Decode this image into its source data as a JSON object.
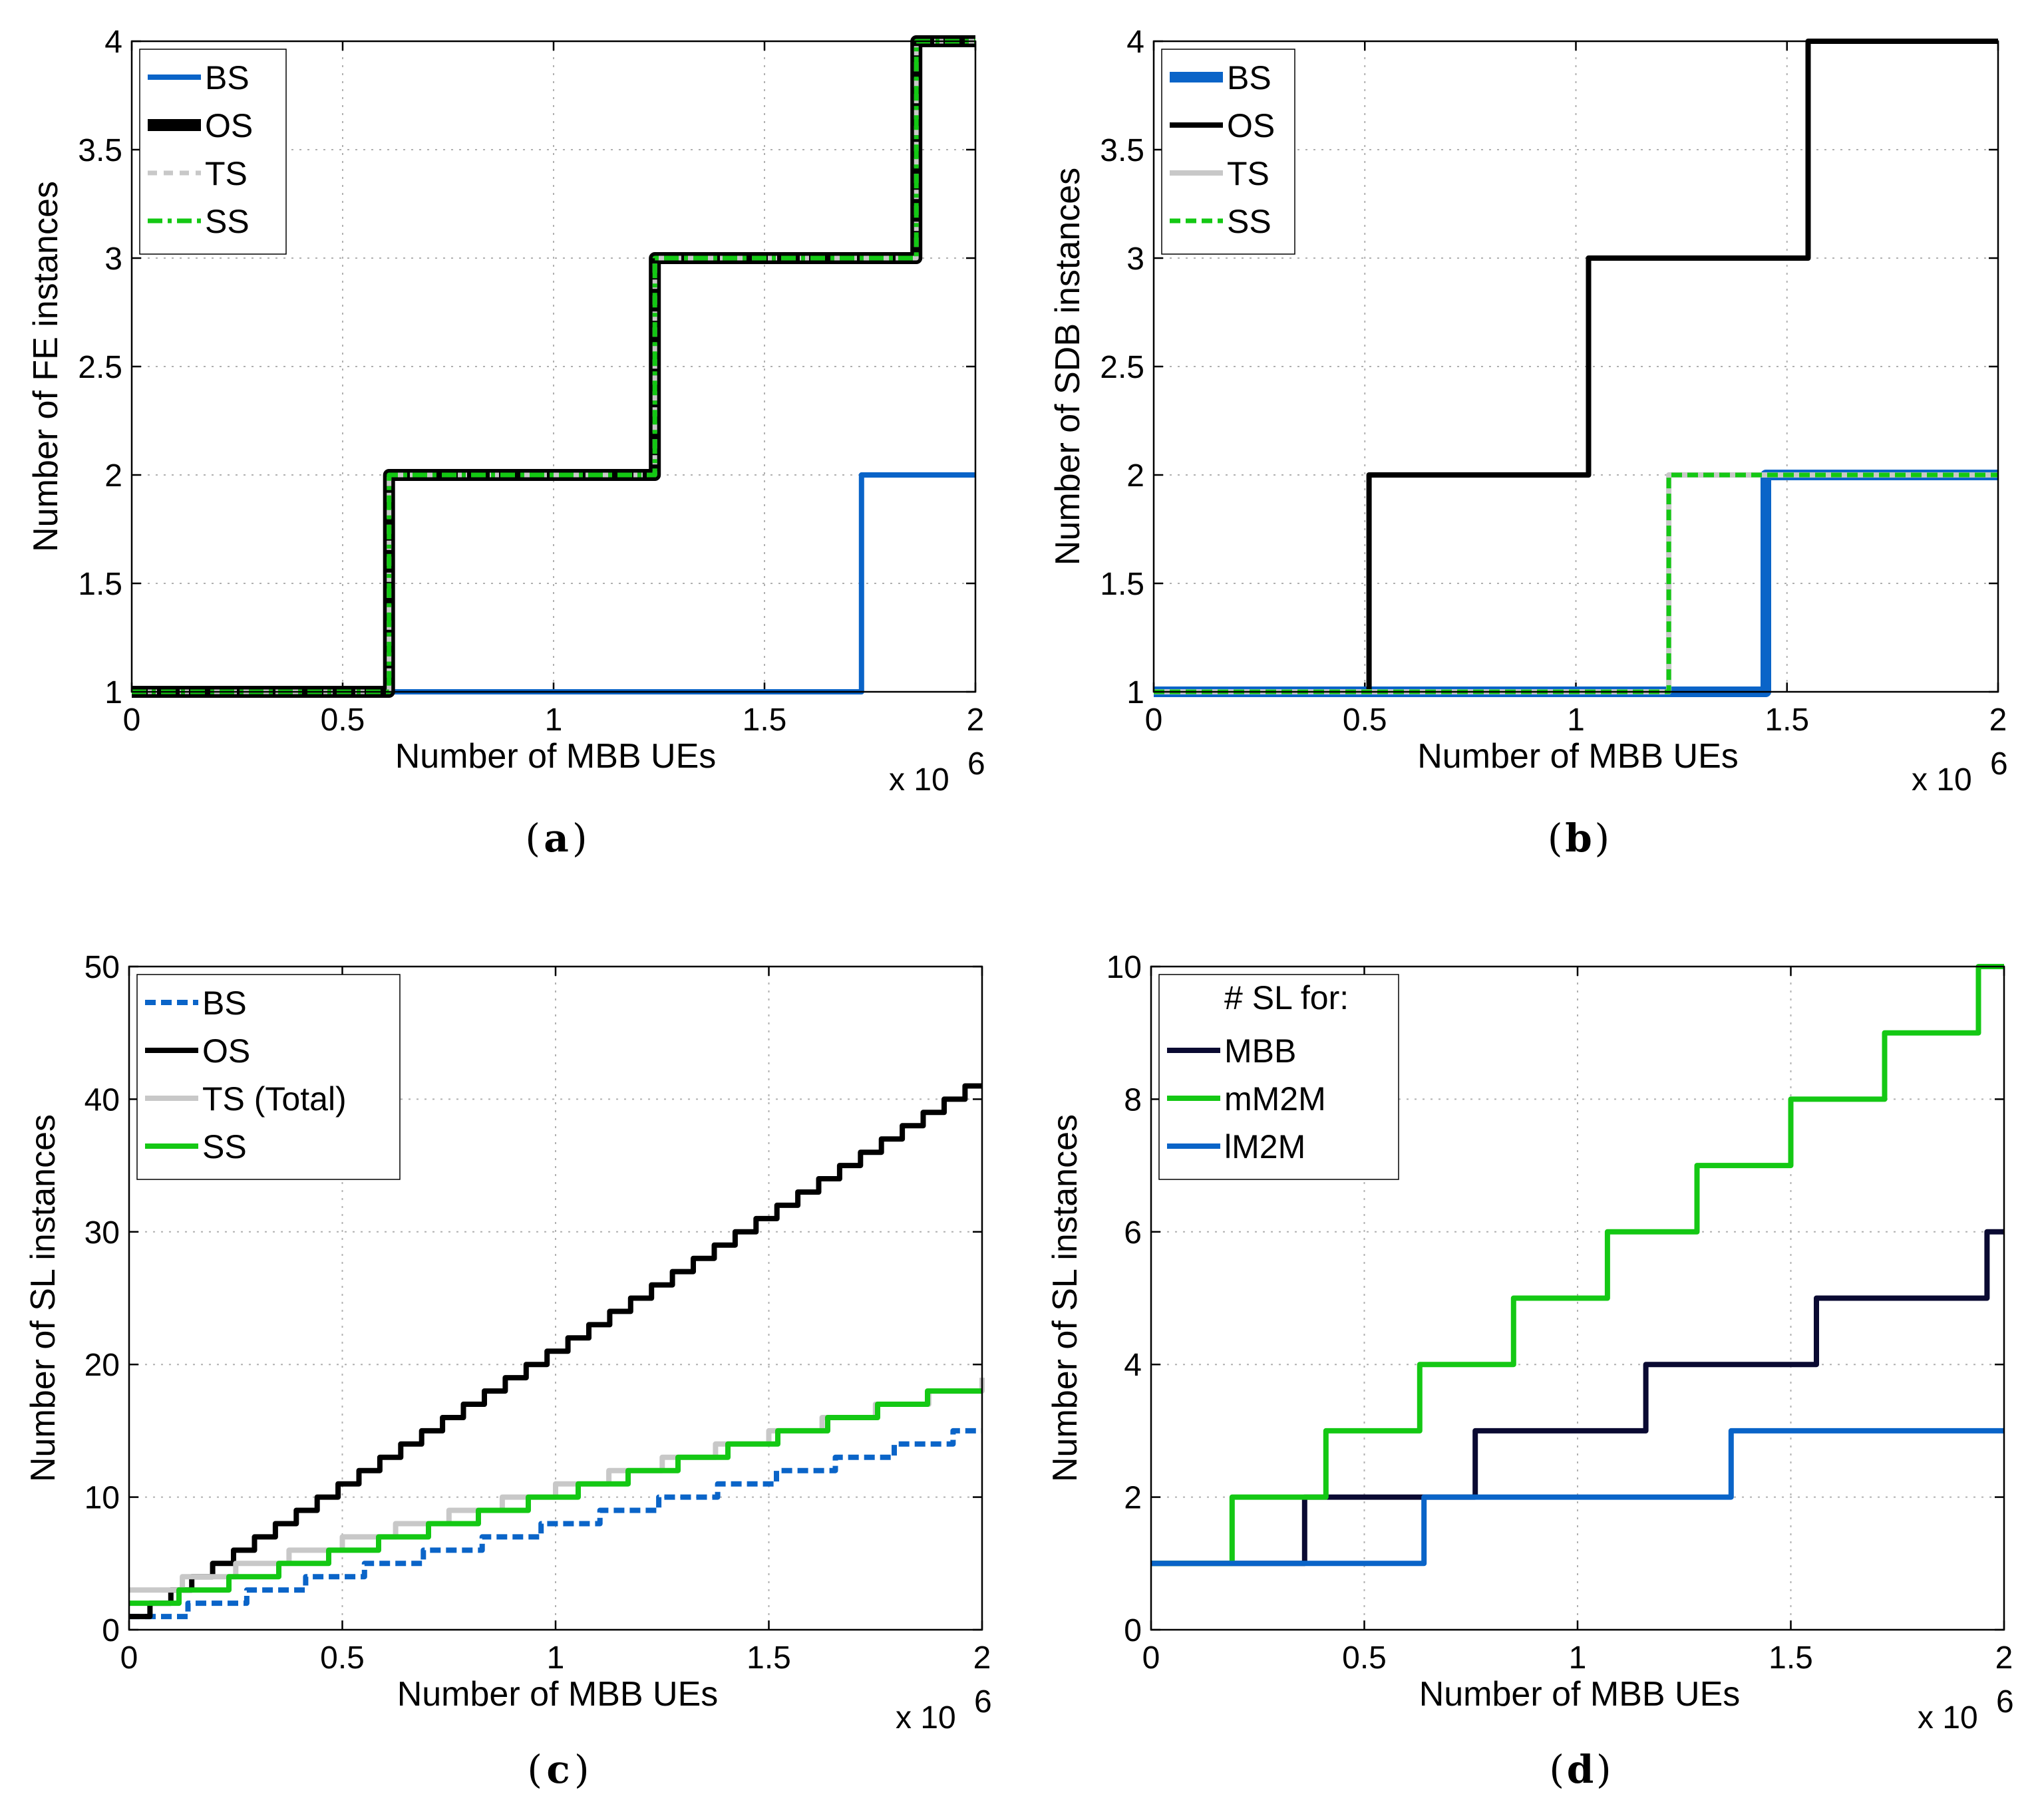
{
  "colors": {
    "blue": "#0a64c8",
    "black": "#000000",
    "gray": "#c8c8c8",
    "green": "#14c814",
    "navy": "#0a0a32"
  },
  "chart_data": [
    {
      "id": "a",
      "type": "line",
      "caption": "a",
      "xlabel": "Number of MBB UEs",
      "ylabel": "Number of FE instances",
      "exponent": "x 10",
      "exponent_sup": "6",
      "xlim": [
        0,
        2
      ],
      "ylim": [
        1,
        4
      ],
      "xticks": [
        "0",
        "0.5",
        "1",
        "1.5",
        "2"
      ],
      "yticks": [
        "1",
        "1.5",
        "2",
        "2.5",
        "3",
        "3.5",
        "4"
      ],
      "legend_position": "top-left",
      "series": [
        {
          "name": "BS",
          "color": "#0a64c8",
          "width": 8,
          "dash": "",
          "x": [
            0,
            1.73,
            1.73,
            2
          ],
          "y": [
            1,
            1,
            2,
            2
          ]
        },
        {
          "name": "OS",
          "color": "#000000",
          "width": 18,
          "dash": "",
          "x": [
            0,
            0.61,
            0.61,
            1.24,
            1.24,
            1.86,
            1.86,
            2
          ],
          "y": [
            1,
            1,
            2,
            2,
            3,
            3,
            4,
            4
          ]
        },
        {
          "name": "TS",
          "color": "#c8c8c8",
          "width": 7,
          "dash": "14 10",
          "x": [
            0,
            0.61,
            0.61,
            1.24,
            1.24,
            1.86,
            1.86,
            2
          ],
          "y": [
            1,
            1,
            2,
            2,
            3,
            3,
            4,
            4
          ]
        },
        {
          "name": "SS",
          "color": "#14c814",
          "width": 7,
          "dash": "22 8 6 8",
          "x": [
            0,
            0.61,
            0.61,
            1.24,
            1.24,
            1.86,
            1.86,
            2
          ],
          "y": [
            1,
            1,
            2,
            2,
            3,
            3,
            4,
            4
          ]
        }
      ]
    },
    {
      "id": "b",
      "type": "line",
      "caption": "b",
      "xlabel": "Number of MBB UEs",
      "ylabel": "Number of SDB instances",
      "exponent": "x 10",
      "exponent_sup": "6",
      "xlim": [
        0,
        2
      ],
      "ylim": [
        1,
        4
      ],
      "xticks": [
        "0",
        "0.5",
        "1",
        "1.5",
        "2"
      ],
      "yticks": [
        "1",
        "1.5",
        "2",
        "2.5",
        "3",
        "3.5",
        "4"
      ],
      "legend_position": "top-left",
      "series": [
        {
          "name": "BS",
          "color": "#0a64c8",
          "width": 16,
          "dash": "",
          "x": [
            0,
            1.45,
            1.45,
            2
          ],
          "y": [
            1,
            1,
            2,
            2
          ]
        },
        {
          "name": "OS",
          "color": "#000000",
          "width": 8,
          "dash": "",
          "x": [
            0,
            0.51,
            0.51,
            1.03,
            1.03,
            1.55,
            1.55,
            2
          ],
          "y": [
            1,
            1,
            2,
            2,
            3,
            3,
            4,
            4
          ]
        },
        {
          "name": "TS",
          "color": "#c8c8c8",
          "width": 8,
          "dash": "",
          "x": [
            0,
            1.22,
            1.22,
            2
          ],
          "y": [
            1,
            1,
            2,
            2
          ]
        },
        {
          "name": "SS",
          "color": "#14c814",
          "width": 7,
          "dash": "16 8",
          "x": [
            0,
            1.22,
            1.22,
            2
          ],
          "y": [
            1,
            1,
            2,
            2
          ]
        }
      ]
    },
    {
      "id": "c",
      "type": "line",
      "caption": "c",
      "xlabel": "Number of MBB UEs",
      "ylabel": "Number of SL instances",
      "exponent": "x 10",
      "exponent_sup": "6",
      "xlim": [
        0,
        2
      ],
      "ylim": [
        0,
        50
      ],
      "xticks": [
        "0",
        "0.5",
        "1",
        "1.5",
        "2"
      ],
      "yticks": [
        "0",
        "10",
        "20",
        "30",
        "40",
        "50"
      ],
      "legend_position": "top-left",
      "series": [
        {
          "name": "BS",
          "color": "#0a64c8",
          "width": 8,
          "dash": "16 8",
          "step": 0.138,
          "start": 1,
          "end": 15
        },
        {
          "name": "OS",
          "color": "#000000",
          "width": 8,
          "dash": "",
          "step": 0.049,
          "start": 1,
          "end": 41
        },
        {
          "name": "TS (Total)",
          "color": "#c8c8c8",
          "width": 8,
          "dash": "",
          "step": 0.125,
          "start": 3,
          "end": 19
        },
        {
          "name": "SS",
          "color": "#14c814",
          "width": 8,
          "dash": "",
          "step": 0.117,
          "start": 2,
          "end": 18
        }
      ]
    },
    {
      "id": "d",
      "type": "line",
      "caption": "d",
      "xlabel": "Number of MBB UEs",
      "ylabel": "Number of SL instances",
      "exponent": "x 10",
      "exponent_sup": "6",
      "xlim": [
        0,
        2
      ],
      "ylim": [
        0,
        10
      ],
      "xticks": [
        "0",
        "0.5",
        "1",
        "1.5",
        "2"
      ],
      "yticks": [
        "0",
        "2",
        "4",
        "6",
        "8",
        "10"
      ],
      "legend_position": "top-left",
      "legend_title": "# SL for:",
      "series": [
        {
          "name": "MBB",
          "color": "#0a0a32",
          "width": 8,
          "dash": "",
          "x": [
            0,
            0.36,
            0.36,
            0.76,
            0.76,
            1.16,
            1.16,
            1.56,
            1.56,
            1.96,
            1.96,
            2
          ],
          "y": [
            1,
            1,
            2,
            2,
            3,
            3,
            4,
            4,
            5,
            5,
            6,
            6
          ]
        },
        {
          "name": "mM2M",
          "color": "#14c814",
          "width": 8,
          "dash": "",
          "x": [
            0,
            0.19,
            0.19,
            0.41,
            0.41,
            0.63,
            0.63,
            0.85,
            0.85,
            1.07,
            1.07,
            1.28,
            1.28,
            1.5,
            1.5,
            1.72,
            1.72,
            1.94,
            1.94,
            2
          ],
          "y": [
            1,
            1,
            2,
            2,
            3,
            3,
            4,
            4,
            5,
            5,
            6,
            6,
            7,
            7,
            8,
            8,
            9,
            9,
            10,
            10
          ]
        },
        {
          "name": "lM2M",
          "color": "#0a64c8",
          "width": 8,
          "dash": "",
          "x": [
            0,
            0.64,
            0.64,
            1.36,
            1.36,
            2
          ],
          "y": [
            1,
            1,
            2,
            2,
            3,
            3
          ]
        }
      ]
    }
  ]
}
